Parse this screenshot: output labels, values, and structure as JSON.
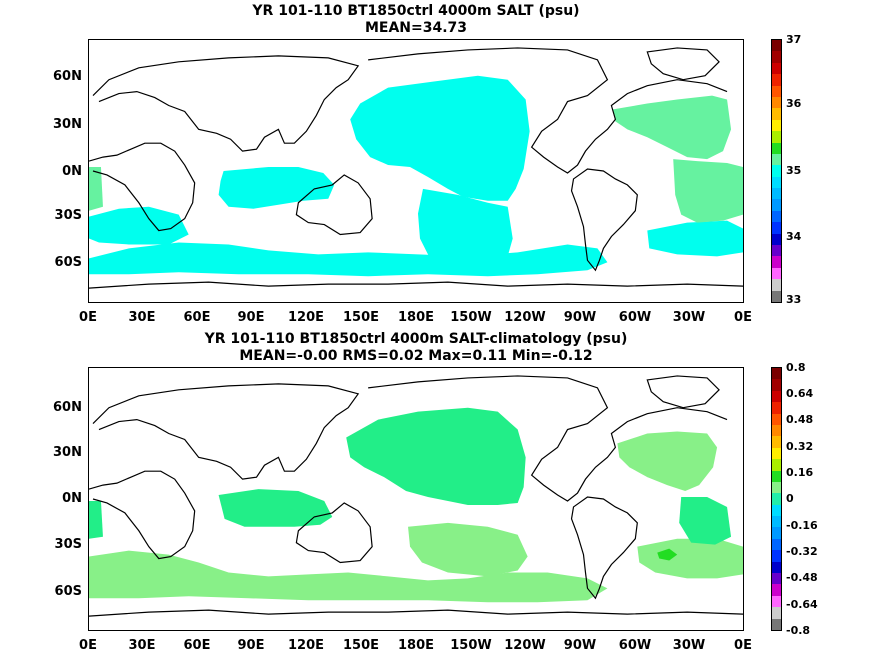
{
  "panels": [
    {
      "title_line1": "YR 101-110 BT1850ctrl 4000m SALT (psu)",
      "title_line2": "MEAN=34.73",
      "lat_labels": [
        "60N",
        "30N",
        "0N",
        "30S",
        "60S"
      ],
      "lon_labels": [
        "0E",
        "30E",
        "60E",
        "90E",
        "120E",
        "150E",
        "180E",
        "150W",
        "120W",
        "90W",
        "60W",
        "30W",
        "0E"
      ],
      "colorbar": {
        "labels": [
          "37",
          "36",
          "35",
          "34",
          "33"
        ],
        "colors": [
          "#7a0000",
          "#a00000",
          "#cc0000",
          "#ee2200",
          "#ff5500",
          "#ff8800",
          "#ffbb00",
          "#ffee00",
          "#aaee00",
          "#22dd22",
          "#66f2a0",
          "#00ffee",
          "#00ddff",
          "#00bbff",
          "#0099ff",
          "#0066ff",
          "#0033ff",
          "#0000cc",
          "#6600cc",
          "#cc00cc",
          "#ff66ff",
          "#cccccc",
          "#777777"
        ],
        "shaded_colors": [
          "#00ffee",
          "#66f2a0"
        ]
      }
    },
    {
      "title_line1": "YR 101-110 BT1850ctrl 4000m SALT-climatology (psu)",
      "title_line2": "MEAN=-0.00   RMS=0.02   Max=0.11   Min=-0.12",
      "lat_labels": [
        "60N",
        "30N",
        "0N",
        "30S",
        "60S"
      ],
      "lon_labels": [
        "0E",
        "30E",
        "60E",
        "90E",
        "120E",
        "150E",
        "180E",
        "150W",
        "120W",
        "90W",
        "60W",
        "30W",
        "0E"
      ],
      "colorbar": {
        "labels": [
          "0.8",
          "0.64",
          "0.48",
          "0.32",
          "0.16",
          "0",
          "-0.16",
          "-0.32",
          "-0.48",
          "-0.64",
          "-0.8"
        ],
        "colors": [
          "#7a0000",
          "#a00000",
          "#cc0000",
          "#ee2200",
          "#ff5500",
          "#ff8800",
          "#ffbb00",
          "#ffee00",
          "#aaee00",
          "#22dd22",
          "#88f088",
          "#22eeaa",
          "#00ddff",
          "#00bbff",
          "#0099ff",
          "#0066ff",
          "#0033ff",
          "#0000cc",
          "#6600cc",
          "#cc00cc",
          "#ff66ff",
          "#cccccc",
          "#777777"
        ],
        "shaded_colors": [
          "#22ee88",
          "#88f088",
          "#22dd22"
        ]
      }
    }
  ]
}
